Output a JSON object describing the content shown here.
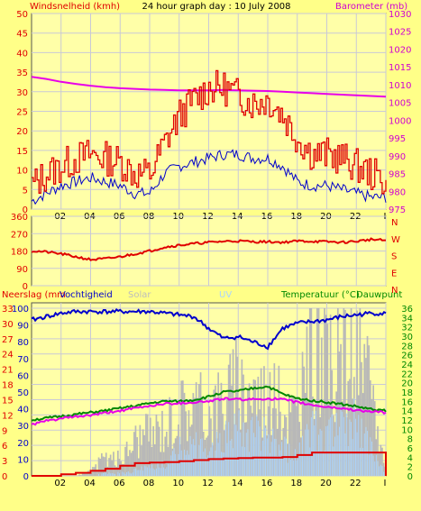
{
  "title": "24 hour graph day : 10 July 2008",
  "colors": {
    "background": "#ffff88",
    "plot_bg": "#ffffa8",
    "grid": "#c9c9d6",
    "wind_gust": "#e00000",
    "wind_avg": "#0000cc",
    "barometer": "#e800e8",
    "direction": "#e00000",
    "rain_total": "#e00000",
    "humidity": "#0000cc",
    "temperature": "#008800",
    "dewpoint": "#e800e8",
    "solar": "#b8b8b8",
    "uv": "#aad4ff",
    "right_axis_top": "#d000d0",
    "right_axis_bottom": "#008800"
  },
  "x_ticks": [
    "02",
    "04",
    "06",
    "08",
    "10",
    "12",
    "14",
    "16",
    "18",
    "20",
    "22",
    "I"
  ],
  "chart_data": [
    {
      "type": "line",
      "name": "wind-barometer",
      "title": "24 hour graph day : 10 July 2008",
      "ylabel": "Windsnelheid (kmh)",
      "y2label": "Barometer (mb)",
      "ylim": [
        0,
        50
      ],
      "y2lim": [
        975,
        1030
      ],
      "yticks": [
        "0",
        "5",
        "10",
        "15",
        "20",
        "25",
        "30",
        "35",
        "40",
        "45",
        "50"
      ],
      "y2ticks": [
        "975",
        "980",
        "985",
        "990",
        "995",
        "1000",
        "1005",
        "1010",
        "1015",
        "1020",
        "1025",
        "1030"
      ],
      "x": [
        0,
        1,
        2,
        3,
        4,
        5,
        6,
        7,
        8,
        9,
        10,
        11,
        12,
        13,
        14,
        15,
        16,
        17,
        18,
        19,
        20,
        21,
        22,
        23,
        24
      ],
      "series": [
        {
          "name": "Windsnelheid (kmh)",
          "role": "gust",
          "values": [
            6,
            9,
            11,
            13,
            14,
            13,
            12,
            9,
            9,
            17,
            24,
            28,
            31,
            31,
            29,
            27,
            28,
            24,
            18,
            14,
            14,
            13,
            11,
            9,
            7
          ]
        },
        {
          "name": "Windsnelheid (kmh)",
          "role": "average",
          "values": [
            2,
            4,
            6,
            7,
            8,
            7,
            6,
            4,
            4,
            9,
            11,
            12,
            13,
            14,
            14,
            13,
            13,
            11,
            7,
            6,
            6,
            5,
            4,
            3,
            3
          ]
        },
        {
          "name": "Barometer (mb)",
          "axis": "right",
          "values": [
            1012.2,
            1011.6,
            1010.8,
            1010.2,
            1009.7,
            1009.3,
            1009.0,
            1008.8,
            1008.6,
            1008.5,
            1008.4,
            1008.4,
            1008.4,
            1008.5,
            1008.4,
            1008.3,
            1008.2,
            1008.0,
            1007.8,
            1007.6,
            1007.4,
            1007.2,
            1007.0,
            1006.8,
            1006.6
          ]
        }
      ]
    },
    {
      "type": "line",
      "name": "wind-direction",
      "ylim": [
        0,
        360
      ],
      "yticks": [
        "0",
        "90",
        "180",
        "270",
        "360"
      ],
      "y2ticks": [
        "N",
        "W",
        "S",
        "E",
        "N"
      ],
      "x": [
        0,
        1,
        2,
        3,
        4,
        5,
        6,
        7,
        8,
        9,
        10,
        11,
        12,
        13,
        14,
        15,
        16,
        17,
        18,
        19,
        20,
        21,
        22,
        23,
        24
      ],
      "series": [
        {
          "name": "direction",
          "values": [
            180,
            175,
            165,
            150,
            135,
            140,
            150,
            165,
            180,
            200,
            210,
            218,
            225,
            230,
            232,
            228,
            228,
            225,
            232,
            230,
            228,
            225,
            230,
            240,
            235
          ]
        }
      ]
    },
    {
      "type": "area",
      "name": "rain-humidity-temperature",
      "ylabel": "Neerslag (mm",
      "ylabel2": "Vochtigheid",
      "label_solar": "Solar",
      "label_uv": "UV",
      "y2label": "Temperatuur (°C)",
      "y2label2": "Dauwpunt",
      "yticks_rain": [
        "0",
        "3",
        "6",
        "9",
        "12",
        "15",
        "18",
        "21",
        "24",
        "27",
        "30",
        "33"
      ],
      "yticks_hum": [
        "0",
        "10",
        "20",
        "30",
        "40",
        "50",
        "60",
        "70",
        "80",
        "90",
        "100"
      ],
      "y2ticks": [
        "0",
        "2",
        "4",
        "6",
        "8",
        "10",
        "12",
        "14",
        "16",
        "18",
        "20",
        "22",
        "24",
        "26",
        "28",
        "30",
        "32",
        "34",
        "36"
      ],
      "x": [
        0,
        1,
        2,
        3,
        4,
        5,
        6,
        7,
        8,
        9,
        10,
        11,
        12,
        13,
        14,
        15,
        16,
        17,
        18,
        19,
        20,
        21,
        22,
        23,
        24
      ],
      "series": [
        {
          "name": "Vochtigheid",
          "values": [
            93,
            95,
            97,
            98,
            98,
            98,
            98,
            98,
            98,
            97,
            96,
            95,
            88,
            82,
            83,
            80,
            77,
            88,
            91,
            92,
            93,
            95,
            96,
            97,
            97
          ]
        },
        {
          "name": "Temperatuur (°C)",
          "values": [
            12.0,
            12.4,
            12.8,
            13.2,
            13.6,
            14.0,
            14.5,
            15.0,
            15.6,
            16.0,
            16.0,
            16.3,
            17.0,
            18.0,
            18.2,
            18.8,
            19.2,
            17.6,
            16.6,
            16.2,
            15.8,
            15.4,
            14.9,
            14.3,
            14.0
          ]
        },
        {
          "name": "Dauwpunt",
          "values": [
            11.0,
            11.8,
            12.3,
            12.7,
            13.0,
            13.5,
            14.0,
            14.5,
            15.0,
            15.5,
            15.6,
            15.8,
            16.0,
            16.6,
            16.4,
            16.4,
            16.6,
            16.4,
            15.8,
            15.2,
            14.8,
            14.5,
            14.1,
            13.8,
            13.6
          ]
        },
        {
          "name": "Neerslag",
          "values": [
            0,
            0,
            0.3,
            0.6,
            1.0,
            1.4,
            2.0,
            2.5,
            2.6,
            2.7,
            2.9,
            3.1,
            3.3,
            3.4,
            3.5,
            3.6,
            3.6,
            3.7,
            4.1,
            4.6,
            4.6,
            4.6,
            4.6,
            4.6,
            4.6
          ]
        },
        {
          "name": "Solar",
          "values": [
            0,
            0,
            0,
            0,
            4,
            14,
            12,
            28,
            32,
            38,
            50,
            55,
            48,
            60,
            70,
            65,
            60,
            50,
            45,
            95,
            80,
            85,
            92,
            60,
            0
          ]
        },
        {
          "name": "UV",
          "values": [
            0,
            0,
            0,
            0,
            0,
            2,
            2,
            4,
            6,
            8,
            20,
            25,
            18,
            30,
            35,
            32,
            28,
            20,
            15,
            35,
            30,
            40,
            45,
            20,
            0
          ]
        }
      ]
    }
  ]
}
